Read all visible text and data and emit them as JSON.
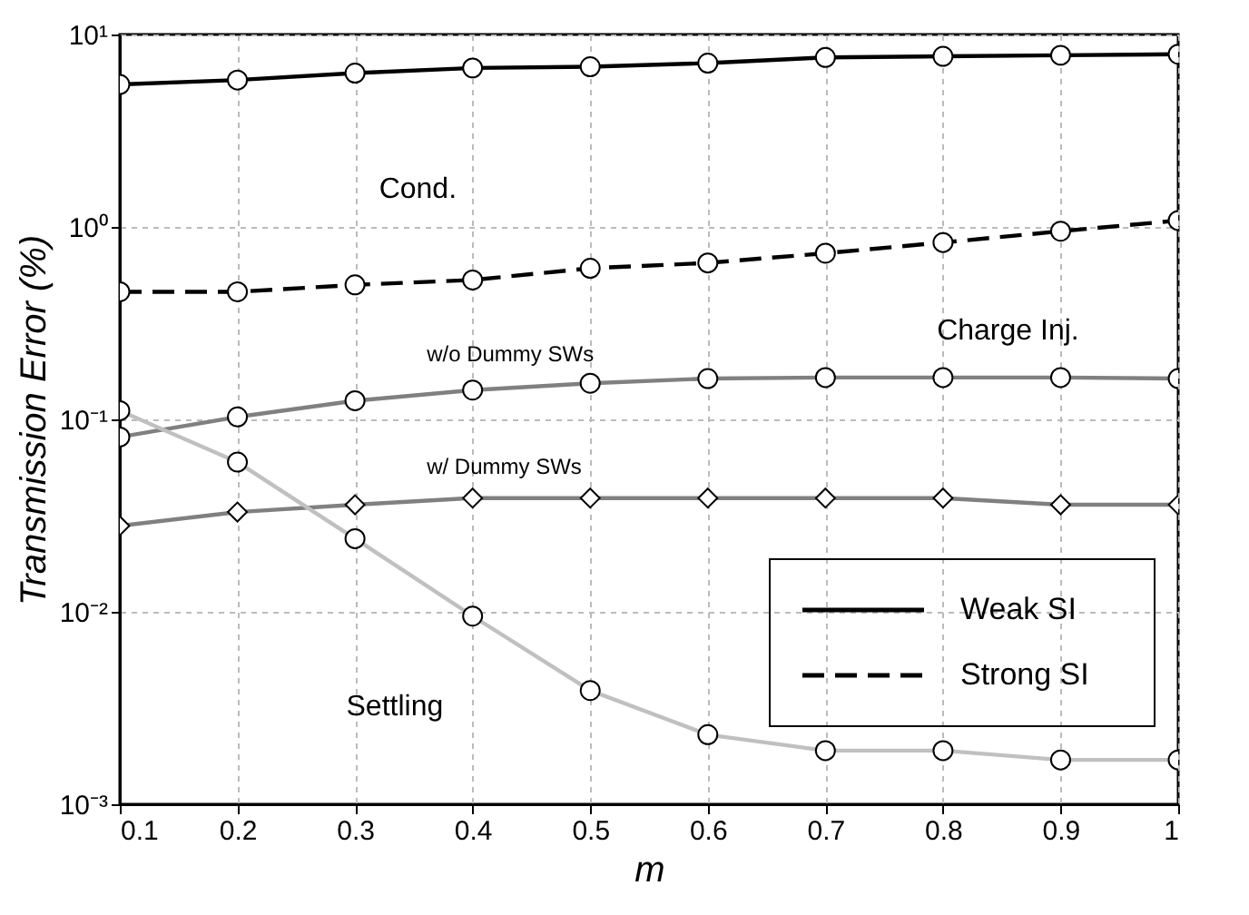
{
  "chart_data": {
    "type": "line",
    "xlabel": "m",
    "ylabel": "Transmission Error (%)",
    "x": [
      0.1,
      0.2,
      0.3,
      0.4,
      0.5,
      0.6,
      0.7,
      0.8,
      0.9,
      1.0
    ],
    "series": [
      {
        "name": "Weak SI",
        "color": "#000000",
        "line_style": "solid",
        "values": [
          5.5,
          5.8,
          6.3,
          6.7,
          6.8,
          7.1,
          7.6,
          7.7,
          7.8,
          7.9
        ]
      },
      {
        "name": "Strong SI",
        "color": "#000000",
        "line_style": "dashed",
        "values": [
          0.46,
          0.46,
          0.5,
          0.53,
          0.61,
          0.65,
          0.73,
          0.83,
          0.95,
          1.08
        ]
      },
      {
        "color": "#808080",
        "line_style": "solid",
        "values": [
          0.081,
          0.103,
          0.125,
          0.142,
          0.154,
          0.163,
          0.165,
          0.165,
          0.165,
          0.163
        ]
      },
      {
        "color": "#808080",
        "line_style": "solid",
        "marker": "diamond",
        "values": [
          0.028,
          0.033,
          0.036,
          0.039,
          0.039,
          0.039,
          0.039,
          0.039,
          0.036,
          0.036
        ]
      },
      {
        "color": "#c0c0c0",
        "line_style": "solid",
        "values": [
          0.111,
          0.06,
          0.024,
          0.0095,
          0.0039,
          0.0023,
          0.0019,
          0.0019,
          0.0017,
          0.0017
        ]
      }
    ],
    "marker": "circle",
    "log": "y",
    "xlim": [
      0.1,
      1.0
    ],
    "xticks": [
      0.1,
      0.2,
      0.3,
      0.4,
      0.5,
      0.6,
      0.7,
      0.8,
      0.9,
      1.0
    ],
    "ylim": [
      0.001,
      10
    ],
    "yticks": [
      {
        "value": 0.001,
        "label": "10⁻³"
      },
      {
        "value": 0.01,
        "label": "10⁻²"
      },
      {
        "value": 0.1,
        "label": "10⁻¹"
      },
      {
        "value": 1,
        "label": "10⁰"
      },
      {
        "value": 10,
        "label": "10¹"
      }
    ],
    "grid": true,
    "legend": "bottom right",
    "annotations": [
      "Cond.",
      "Charge Inj.",
      "Settling",
      "w/o Dummy SWs",
      "w/ Dummy SWs"
    ]
  }
}
